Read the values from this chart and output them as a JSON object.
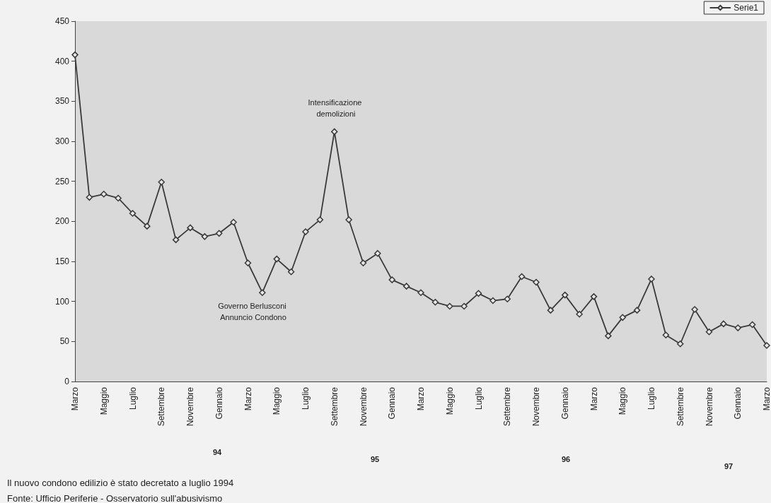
{
  "chart_data": {
    "type": "line",
    "categories": [
      "Marzo",
      null,
      "Maggio",
      null,
      "Luglio",
      null,
      "Settembre",
      null,
      "Novembre",
      null,
      "Gennaio",
      null,
      "Marzo",
      null,
      "Maggio",
      null,
      "Luglio",
      null,
      "Settembre",
      null,
      "Novembre",
      null,
      "Gennaio",
      null,
      "Marzo",
      null,
      "Maggio",
      null,
      "Luglio",
      null,
      "Settembre",
      null,
      "Novembre",
      null,
      "Gennaio",
      null,
      "Marzo",
      null,
      "Maggio",
      null,
      "Luglio",
      null,
      "Settembre",
      null,
      "Novembre",
      null,
      "Gennaio",
      null,
      "Marzo"
    ],
    "series": [
      {
        "name": "Serie1",
        "color": "#3a3a3a",
        "values": [
          408,
          230,
          234,
          229,
          210,
          194,
          249,
          177,
          192,
          181,
          185,
          199,
          148,
          111,
          153,
          137,
          187,
          202,
          312,
          202,
          148,
          160,
          127,
          119,
          111,
          99,
          94,
          94,
          110,
          101,
          103,
          131,
          124,
          89,
          108,
          84,
          106,
          57,
          80,
          89,
          128,
          58,
          47,
          90,
          62,
          72,
          67,
          71,
          45
        ]
      }
    ],
    "ylim": [
      0,
      450
    ],
    "yticks": [
      0,
      50,
      100,
      150,
      200,
      250,
      300,
      350,
      400,
      450
    ],
    "grid": false,
    "legend": "top right",
    "marker": "diamond",
    "line_style": "solid",
    "annotations": [
      "Intensificazione demolizioni",
      "Governo Berlusconi Annuncio Condono",
      "94",
      "95",
      "96",
      "97",
      "Il nuovo condono edilizio è stato decretato a luglio 1994",
      "Fonte: Ufficio Periferie - Osservatorio sull'abusivismo"
    ]
  }
}
